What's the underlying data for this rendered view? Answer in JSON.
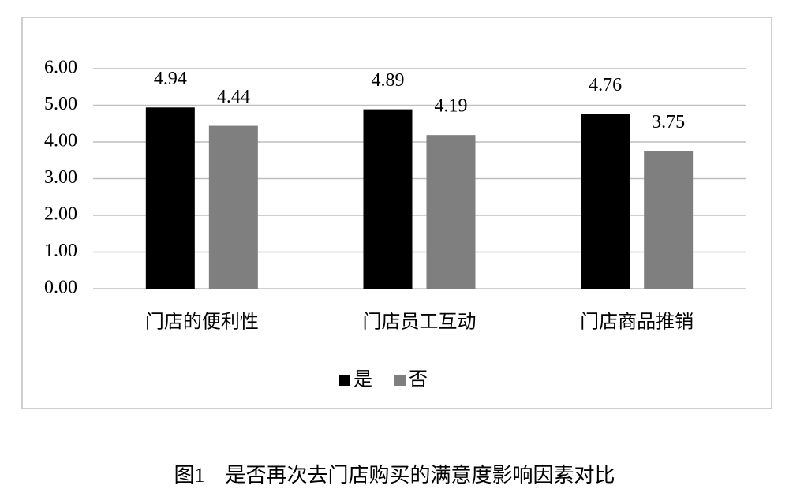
{
  "chart_data": {
    "type": "bar",
    "caption": "图1　是否再次去门店购买的满意度影响因素对比",
    "categories": [
      "门店的便利性",
      "门店员工互动",
      "门店商品推销"
    ],
    "series": [
      {
        "name": "是",
        "color": "#000000",
        "values": [
          4.94,
          4.89,
          4.76
        ]
      },
      {
        "name": "否",
        "color": "#7f7f7f",
        "values": [
          4.44,
          4.19,
          3.75
        ]
      }
    ],
    "ylim": [
      0,
      6
    ],
    "yticks": [
      {
        "value": 0,
        "label": "0.00"
      },
      {
        "value": 1,
        "label": "1.00"
      },
      {
        "value": 2,
        "label": "2.00"
      },
      {
        "value": 3,
        "label": "3.00"
      },
      {
        "value": 4,
        "label": "4.00"
      },
      {
        "value": 5,
        "label": "5.00"
      },
      {
        "value": 6,
        "label": "6.00"
      }
    ],
    "grid": true
  }
}
